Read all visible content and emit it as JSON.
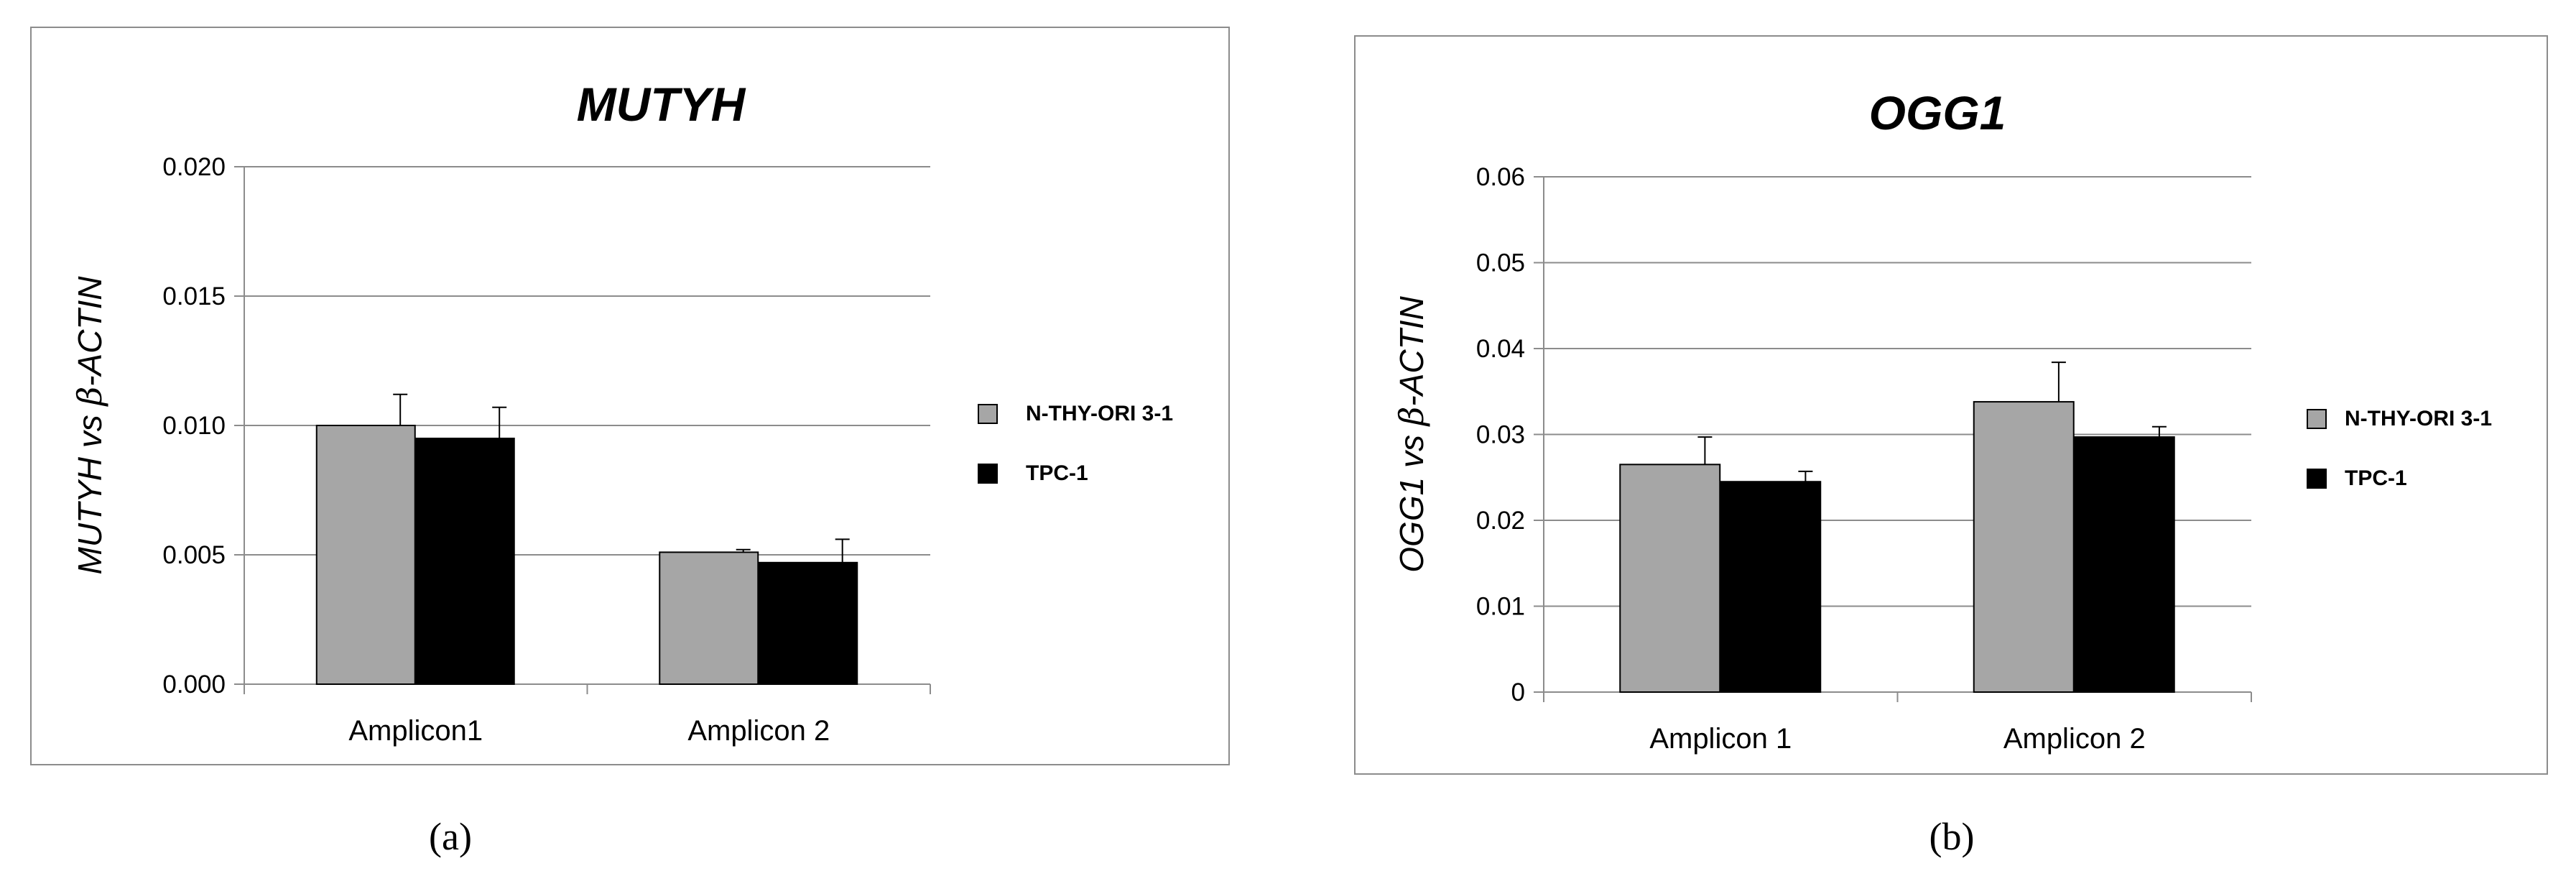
{
  "chart_data": [
    {
      "type": "bar",
      "title": "MUTYH",
      "ylabel_parts": [
        "MUTYH vs ",
        "β",
        "-ACTIN"
      ],
      "xlabel": "",
      "categories": [
        "Amplicon1",
        "Amplicon 2"
      ],
      "series": [
        {
          "name": "N-THY-ORI 3-1",
          "color": "#a6a6a6",
          "values": [
            0.01,
            0.0051
          ],
          "errors": [
            0.0012,
            0.0001
          ]
        },
        {
          "name": "TPC-1",
          "color": "#000000",
          "values": [
            0.0095,
            0.0047
          ],
          "errors": [
            0.0012,
            0.0009
          ]
        }
      ],
      "ylim": [
        0,
        0.02
      ],
      "yticks": [
        0,
        0.005,
        0.01,
        0.015,
        0.02
      ],
      "ytick_labels": [
        "0.000",
        "0.005",
        "0.010",
        "0.015",
        "0.020"
      ],
      "grid": true,
      "legend_position": "right",
      "panel_label": "(a)"
    },
    {
      "type": "bar",
      "title": "OGG1",
      "ylabel_parts": [
        "OGG1 vs ",
        "β",
        "-ACTIN"
      ],
      "xlabel": "",
      "categories": [
        "Amplicon 1",
        "Amplicon 2"
      ],
      "series": [
        {
          "name": "N-THY-ORI 3-1",
          "color": "#a6a6a6",
          "values": [
            0.0265,
            0.0338
          ],
          "errors": [
            0.0032,
            0.0046
          ]
        },
        {
          "name": "TPC-1",
          "color": "#000000",
          "values": [
            0.0245,
            0.0297
          ],
          "errors": [
            0.0012,
            0.0012
          ]
        }
      ],
      "ylim": [
        0,
        0.06
      ],
      "yticks": [
        0,
        0.01,
        0.02,
        0.03,
        0.04,
        0.05,
        0.06
      ],
      "ytick_labels": [
        "0",
        "0.01",
        "0.02",
        "0.03",
        "0.04",
        "0.05",
        "0.06"
      ],
      "grid": true,
      "legend_position": "right",
      "panel_label": "(b)"
    }
  ]
}
